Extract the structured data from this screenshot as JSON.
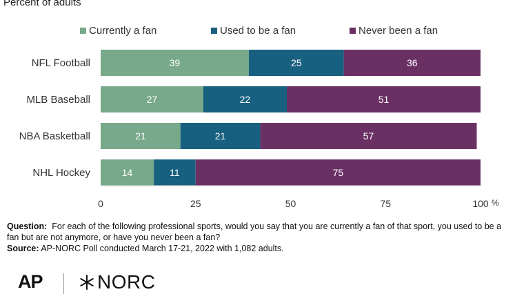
{
  "subtitle": "Percent of adults",
  "chart_data": {
    "type": "bar",
    "orientation": "horizontal",
    "stacked": true,
    "categories": [
      "NFL Football",
      "MLB Baseball",
      "NBA Basketball",
      "NHL Hockey"
    ],
    "series": [
      {
        "name": "Currently a fan",
        "color": "#77a98a",
        "values": [
          39,
          27,
          21,
          14
        ]
      },
      {
        "name": "Used to be a fan",
        "color": "#18607f",
        "values": [
          25,
          22,
          21,
          11
        ]
      },
      {
        "name": "Never been a fan",
        "color": "#6a3064",
        "values": [
          36,
          51,
          57,
          75
        ]
      }
    ],
    "xlim": [
      0,
      100
    ],
    "xticks": [
      "0",
      "25",
      "50",
      "75",
      "100"
    ],
    "x_unit": "%",
    "grid": false,
    "legend_position": "top"
  },
  "notes": {
    "question_label": "Question:",
    "question_text": "For each of the following professional sports, would you say that you are currently a fan of that sport, you used to be a fan but are not anymore, or have you never been a fan?",
    "source_label": "Source:",
    "source_text": "AP-NORC Poll conducted March 17-21, 2022 with 1,082 adults."
  },
  "logos": {
    "ap": "AP",
    "norc": "NORC"
  }
}
